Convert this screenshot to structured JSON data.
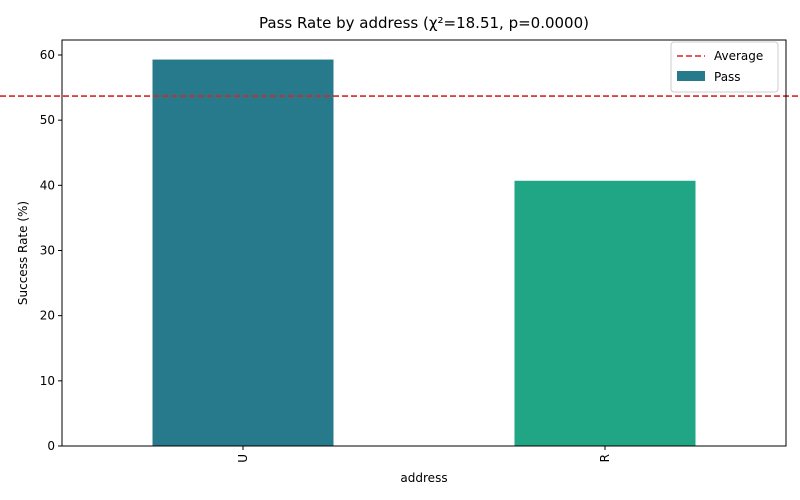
{
  "chart_data": {
    "type": "bar",
    "title": "Pass Rate by address (χ²=18.51, p=0.0000)",
    "xlabel": "address",
    "ylabel": "Success Rate (%)",
    "categories": [
      "U",
      "R"
    ],
    "series": [
      {
        "name": "Pass",
        "values": [
          59.3,
          40.7
        ]
      }
    ],
    "bar_colors": [
      "#277a8c",
      "#21a685"
    ],
    "average": {
      "label": "Average",
      "value": 53.7,
      "color": "#d62728",
      "style": "dashed"
    },
    "ylim": [
      0,
      62.3
    ],
    "yticks": [
      0,
      10,
      20,
      30,
      40,
      50,
      60
    ],
    "x_tick_rotation": 90,
    "legend_position": "top-right",
    "grid": false
  }
}
